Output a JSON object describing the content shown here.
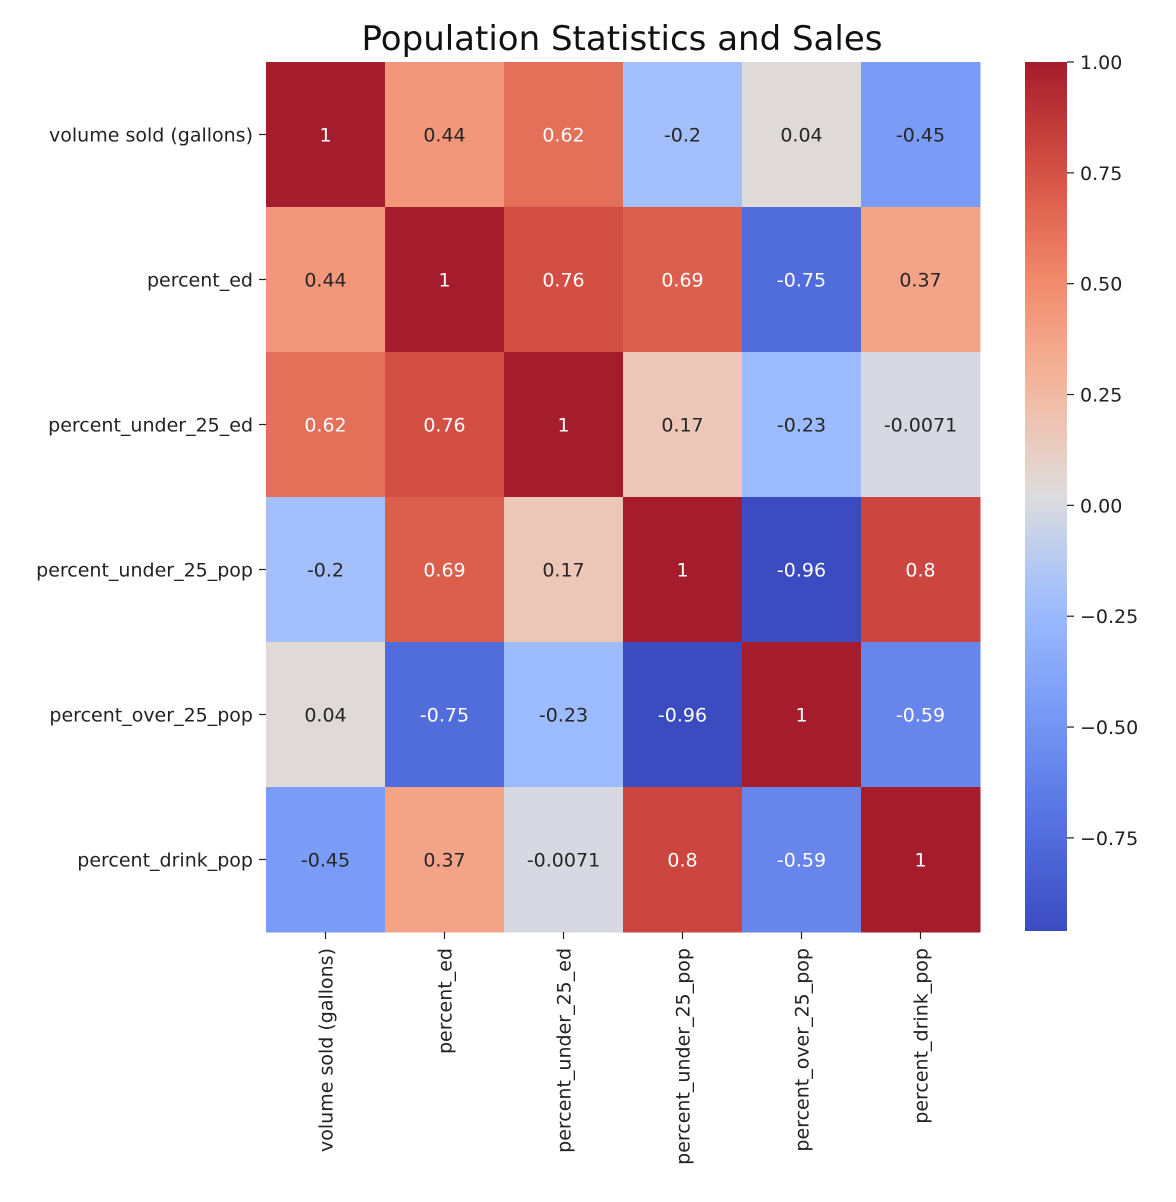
{
  "chart_data": {
    "type": "heatmap",
    "title": "Population Statistics and Sales",
    "row_labels": [
      "volume sold (gallons)",
      "percent_ed",
      "percent_under_25_ed",
      "percent_under_25_pop",
      "percent_over_25_pop",
      "percent_drink_pop"
    ],
    "col_labels": [
      "volume sold (gallons)",
      "percent_ed",
      "percent_under_25_ed",
      "percent_under_25_pop",
      "percent_over_25_pop",
      "percent_drink_pop"
    ],
    "values": [
      [
        1,
        0.44,
        0.62,
        -0.2,
        0.04,
        -0.45
      ],
      [
        0.44,
        1,
        0.76,
        0.69,
        -0.75,
        0.37
      ],
      [
        0.62,
        0.76,
        1,
        0.17,
        -0.23,
        -0.0071
      ],
      [
        -0.2,
        0.69,
        0.17,
        1,
        -0.96,
        0.8
      ],
      [
        0.04,
        -0.75,
        -0.23,
        -0.96,
        1,
        -0.59
      ],
      [
        -0.45,
        0.37,
        -0.0071,
        0.8,
        -0.59,
        1
      ]
    ],
    "cell_labels": [
      [
        "1",
        "0.44",
        "0.62",
        "-0.2",
        "0.04",
        "-0.45"
      ],
      [
        "0.44",
        "1",
        "0.76",
        "0.69",
        "-0.75",
        "0.37"
      ],
      [
        "0.62",
        "0.76",
        "1",
        "0.17",
        "-0.23",
        "-0.0071"
      ],
      [
        "-0.2",
        "0.69",
        "0.17",
        "1",
        "-0.96",
        "0.8"
      ],
      [
        "0.04",
        "-0.75",
        "-0.23",
        "-0.96",
        "1",
        "-0.59"
      ],
      [
        "-0.45",
        "0.37",
        "-0.0071",
        "0.8",
        "-0.59",
        "1"
      ]
    ],
    "colormap": "coolwarm",
    "vmin": -0.96,
    "vmax": 1,
    "colorbar": {
      "ticks": [
        1.0,
        0.75,
        0.5,
        0.25,
        0.0,
        -0.25,
        -0.5,
        -0.75
      ],
      "tick_labels": [
        "1.00",
        "0.75",
        "0.50",
        "0.25",
        "0.00",
        "−0.25",
        "−0.50",
        "−0.75"
      ]
    },
    "grid": false
  }
}
